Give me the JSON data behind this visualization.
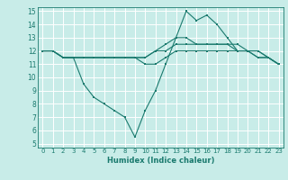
{
  "xlabel": "Humidex (Indice chaleur)",
  "bg_color": "#c8ece8",
  "grid_color": "#ffffff",
  "line_color": "#1a7a6e",
  "xlim": [
    -0.5,
    23.5
  ],
  "ylim": [
    4.7,
    15.3
  ],
  "xticks": [
    0,
    1,
    2,
    3,
    4,
    5,
    6,
    7,
    8,
    9,
    10,
    11,
    12,
    13,
    14,
    15,
    16,
    17,
    18,
    19,
    20,
    21,
    22,
    23
  ],
  "yticks": [
    5,
    6,
    7,
    8,
    9,
    10,
    11,
    12,
    13,
    14,
    15
  ],
  "line1_x": [
    0,
    1,
    2,
    3,
    4,
    5,
    6,
    7,
    8,
    9,
    10,
    11,
    12,
    13,
    14,
    15,
    16,
    17,
    18,
    19,
    20,
    21,
    22,
    23
  ],
  "line1_y": [
    12.0,
    12.0,
    11.5,
    11.5,
    11.5,
    11.5,
    11.5,
    11.5,
    11.5,
    11.5,
    11.0,
    11.0,
    11.5,
    12.0,
    12.0,
    12.0,
    12.0,
    12.0,
    12.0,
    12.0,
    12.0,
    12.0,
    11.5,
    11.0
  ],
  "line2_x": [
    0,
    1,
    2,
    3,
    4,
    5,
    6,
    7,
    8,
    9,
    10,
    11,
    12,
    13,
    14,
    15,
    16,
    17,
    18,
    19,
    20,
    21,
    22,
    23
  ],
  "line2_y": [
    12.0,
    12.0,
    11.5,
    11.5,
    11.5,
    11.5,
    11.5,
    11.5,
    11.5,
    11.5,
    11.5,
    12.0,
    12.0,
    12.5,
    12.5,
    12.5,
    12.5,
    12.5,
    12.5,
    12.5,
    12.0,
    11.5,
    11.5,
    11.0
  ],
  "line3_x": [
    0,
    1,
    2,
    3,
    4,
    5,
    6,
    7,
    8,
    9,
    10,
    11,
    12,
    13,
    14,
    15,
    16,
    17,
    18,
    19,
    20,
    21,
    22,
    23
  ],
  "line3_y": [
    12.0,
    12.0,
    11.5,
    11.5,
    11.5,
    11.5,
    11.5,
    11.5,
    11.5,
    11.5,
    11.5,
    12.0,
    12.5,
    13.0,
    13.0,
    12.5,
    12.5,
    12.5,
    12.5,
    12.0,
    12.0,
    12.0,
    11.5,
    11.0
  ],
  "line4_x": [
    0,
    1,
    2,
    3,
    4,
    5,
    6,
    7,
    8,
    9,
    10,
    11,
    12,
    13,
    14,
    15,
    16,
    17,
    18,
    19,
    20,
    21,
    22,
    23
  ],
  "line4_y": [
    12.0,
    12.0,
    11.5,
    11.5,
    9.5,
    8.5,
    8.0,
    7.5,
    7.0,
    5.5,
    7.5,
    9.0,
    11.0,
    13.0,
    15.0,
    14.3,
    14.7,
    14.0,
    13.0,
    12.0,
    12.0,
    11.5,
    11.5,
    11.0
  ]
}
